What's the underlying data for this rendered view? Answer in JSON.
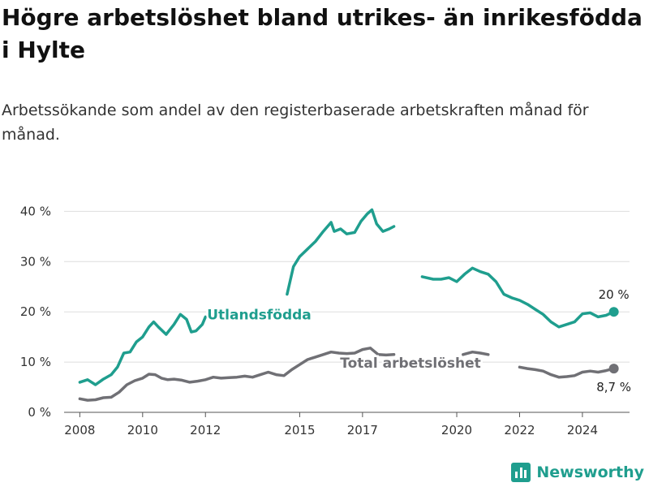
{
  "page": {
    "title": "Högre arbetslöshet bland utrikes- än inrikesfödda i Hylte",
    "subtitle": "Arbetssökande som andel av den registerbaserade arbetskraften månad för månad.",
    "brand": "Newsworthy",
    "brand_icon": "bar-chart-logo-icon",
    "brand_color": "#1f9e8e"
  },
  "chart_data": {
    "type": "line",
    "title": "Högre arbetslöshet bland utrikes- än inrikesfödda i Hylte",
    "subtitle": "Arbetssökande som andel av den registerbaserade arbetskraften månad för månad.",
    "xlabel": "",
    "ylabel": "",
    "x_range": [
      2007.5,
      2025.5
    ],
    "ylim": [
      0,
      42
    ],
    "y_ticks": [
      0,
      10,
      20,
      30,
      40
    ],
    "y_tick_labels": [
      "0 %",
      "10 %",
      "20 %",
      "30 %",
      "40 %"
    ],
    "x_ticks": [
      2008,
      2010,
      2012,
      2015,
      2017,
      2020,
      2022,
      2024
    ],
    "x_tick_labels": [
      "2008",
      "2010",
      "2012",
      "2015",
      "2017",
      "2020",
      "2022",
      "2024"
    ],
    "grid": "horizontal",
    "legend": "none (direct labels on lines)",
    "series": [
      {
        "name": "Utlandsfödda",
        "color": "#1f9e8e",
        "end_label": "20 %",
        "points": [
          [
            2008.0,
            6.0
          ],
          [
            2008.25,
            6.5
          ],
          [
            2008.5,
            5.5
          ],
          [
            2008.75,
            6.6
          ],
          [
            2009.0,
            7.5
          ],
          [
            2009.2,
            9.0
          ],
          [
            2009.4,
            11.8
          ],
          [
            2009.6,
            12.0
          ],
          [
            2009.8,
            14.0
          ],
          [
            2010.0,
            15.0
          ],
          [
            2010.2,
            17.0
          ],
          [
            2010.35,
            18.0
          ],
          [
            2010.5,
            17.0
          ],
          [
            2010.75,
            15.5
          ],
          [
            2011.0,
            17.5
          ],
          [
            2011.2,
            19.5
          ],
          [
            2011.4,
            18.5
          ],
          [
            2011.55,
            16.0
          ],
          [
            2011.7,
            16.2
          ],
          [
            2011.9,
            17.5
          ],
          [
            2012.0,
            19.0
          ],
          null,
          [
            2014.6,
            23.5
          ],
          [
            2014.8,
            29.0
          ],
          [
            2015.0,
            31.0
          ],
          [
            2015.25,
            32.5
          ],
          [
            2015.5,
            34.0
          ],
          [
            2015.75,
            36.0
          ],
          [
            2016.0,
            37.8
          ],
          [
            2016.1,
            36.0
          ],
          [
            2016.3,
            36.5
          ],
          [
            2016.5,
            35.5
          ],
          [
            2016.75,
            35.8
          ],
          [
            2016.95,
            38.0
          ],
          [
            2017.15,
            39.5
          ],
          [
            2017.3,
            40.3
          ],
          [
            2017.45,
            37.5
          ],
          [
            2017.65,
            36.0
          ],
          [
            2017.85,
            36.5
          ],
          [
            2018.0,
            37.0
          ],
          null,
          [
            2018.9,
            27.0
          ],
          [
            2019.25,
            26.5
          ],
          [
            2019.5,
            26.5
          ],
          [
            2019.75,
            26.8
          ],
          [
            2020.0,
            26.0
          ],
          [
            2020.25,
            27.5
          ],
          [
            2020.5,
            28.7
          ],
          [
            2020.75,
            28.0
          ],
          [
            2021.0,
            27.5
          ],
          [
            2021.25,
            26.0
          ],
          [
            2021.5,
            23.5
          ],
          [
            2021.75,
            22.8
          ],
          [
            2022.0,
            22.3
          ],
          [
            2022.25,
            21.5
          ],
          [
            2022.5,
            20.5
          ],
          [
            2022.75,
            19.5
          ],
          [
            2023.0,
            18.0
          ],
          [
            2023.25,
            17.0
          ],
          [
            2023.5,
            17.5
          ],
          [
            2023.75,
            18.0
          ],
          [
            2024.0,
            19.6
          ],
          [
            2024.25,
            19.8
          ],
          [
            2024.5,
            19.0
          ],
          [
            2024.75,
            19.3
          ],
          [
            2025.0,
            20.0
          ]
        ]
      },
      {
        "name": "Total arbetslöshet",
        "color": "#707075",
        "end_label": "8,7 %",
        "points": [
          [
            2008.0,
            2.7
          ],
          [
            2008.25,
            2.4
          ],
          [
            2008.5,
            2.5
          ],
          [
            2008.75,
            2.9
          ],
          [
            2009.0,
            3.0
          ],
          [
            2009.25,
            4.0
          ],
          [
            2009.5,
            5.5
          ],
          [
            2009.75,
            6.3
          ],
          [
            2010.0,
            6.8
          ],
          [
            2010.2,
            7.6
          ],
          [
            2010.4,
            7.5
          ],
          [
            2010.6,
            6.8
          ],
          [
            2010.8,
            6.5
          ],
          [
            2011.0,
            6.6
          ],
          [
            2011.25,
            6.4
          ],
          [
            2011.5,
            6.0
          ],
          [
            2011.75,
            6.2
          ],
          [
            2012.0,
            6.5
          ],
          [
            2012.25,
            7.0
          ],
          [
            2012.5,
            6.8
          ],
          [
            2012.75,
            6.9
          ],
          [
            2013.0,
            7.0
          ],
          [
            2013.25,
            7.2
          ],
          [
            2013.5,
            7.0
          ],
          [
            2013.75,
            7.5
          ],
          [
            2014.0,
            8.0
          ],
          [
            2014.25,
            7.5
          ],
          [
            2014.5,
            7.3
          ],
          [
            2014.75,
            8.5
          ],
          [
            2015.0,
            9.5
          ],
          [
            2015.25,
            10.5
          ],
          [
            2015.5,
            11.0
          ],
          [
            2015.75,
            11.5
          ],
          [
            2016.0,
            12.0
          ],
          [
            2016.25,
            11.8
          ],
          [
            2016.5,
            11.7
          ],
          [
            2016.75,
            11.8
          ],
          [
            2017.0,
            12.5
          ],
          [
            2017.25,
            12.8
          ],
          [
            2017.5,
            11.5
          ],
          [
            2017.75,
            11.4
          ],
          [
            2018.0,
            11.5
          ],
          null,
          [
            2020.2,
            11.5
          ],
          [
            2020.5,
            12.0
          ],
          [
            2020.75,
            11.8
          ],
          [
            2021.0,
            11.5
          ],
          null,
          [
            2022.0,
            9.0
          ],
          [
            2022.25,
            8.7
          ],
          [
            2022.5,
            8.5
          ],
          [
            2022.75,
            8.2
          ],
          [
            2023.0,
            7.5
          ],
          [
            2023.25,
            7.0
          ],
          [
            2023.5,
            7.1
          ],
          [
            2023.75,
            7.3
          ],
          [
            2024.0,
            8.0
          ],
          [
            2024.25,
            8.2
          ],
          [
            2024.5,
            8.0
          ],
          [
            2024.75,
            8.3
          ],
          [
            2025.0,
            8.7
          ]
        ]
      }
    ]
  }
}
